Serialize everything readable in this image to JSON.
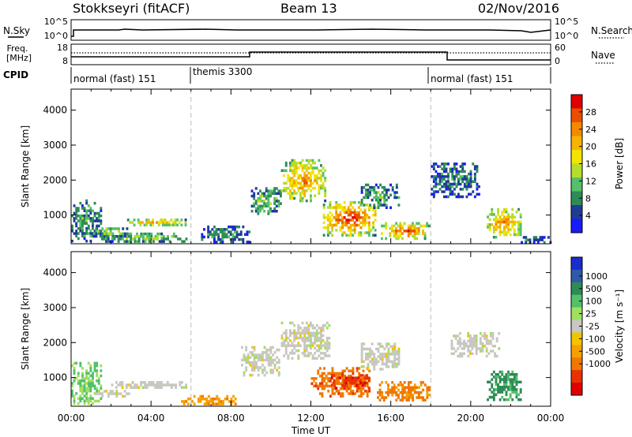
{
  "header": {
    "title": "Stokkseyri (fitACF)",
    "beam": "Beam 13",
    "date": "02/Nov/2016"
  },
  "meta_panels": {
    "nsky": {
      "label": "N.Sky",
      "ticks": [
        "10^5",
        "10^0"
      ]
    },
    "nsearch": {
      "label": "N.Search",
      "ticks": [
        "10^5",
        "10^0"
      ]
    },
    "freq": {
      "label_top": "Freq.",
      "label_unit": "[MHz]",
      "ticks": [
        "18",
        "8"
      ]
    },
    "nave": {
      "label": "Nave",
      "ticks": [
        "60",
        "0"
      ]
    },
    "cpid": {
      "label": "CPID",
      "segments": [
        {
          "start": 0,
          "end": 6,
          "text": "normal (fast) 151"
        },
        {
          "start": 6,
          "end": 18,
          "text": "themis 3300"
        },
        {
          "start": 18,
          "end": 24,
          "text": "normal (fast) 151"
        }
      ]
    }
  },
  "chart_data": [
    {
      "type": "heatmap",
      "name": "power",
      "xlabel": "",
      "ylabel": "Slant Range [km]",
      "xlim": [
        0,
        24
      ],
      "ylim": [
        180,
        4600
      ],
      "yticks": [
        "1000",
        "2000",
        "3000",
        "4000"
      ],
      "colorbar": {
        "label": "Power [dB]",
        "ticks": [
          "4",
          "8",
          "12",
          "16",
          "20",
          "24",
          "28"
        ],
        "colors": [
          "#1a1aff",
          "#1e3c96",
          "#2e8b57",
          "#55c06a",
          "#b5dd2c",
          "#f3e300",
          "#f6b400",
          "#f28a00",
          "#ea4f00",
          "#e00000"
        ]
      },
      "patches": [
        {
          "t0": 0.0,
          "t1": 1.5,
          "r0": 200,
          "r1": 1450,
          "value": 10
        },
        {
          "t0": 1.5,
          "t1": 5.8,
          "r0": 200,
          "r1": 500,
          "value": 12
        },
        {
          "t0": 2.8,
          "t1": 5.8,
          "r0": 650,
          "r1": 900,
          "value": 20
        },
        {
          "t0": 1.0,
          "t1": 2.8,
          "r0": 350,
          "r1": 650,
          "value": 14
        },
        {
          "t0": 6.5,
          "t1": 9.0,
          "r0": 200,
          "r1": 700,
          "value": 8
        },
        {
          "t0": 9.0,
          "t1": 10.5,
          "r0": 1000,
          "r1": 1800,
          "value": 12
        },
        {
          "t0": 10.5,
          "t1": 12.8,
          "r0": 1400,
          "r1": 2600,
          "value": 22
        },
        {
          "t0": 12.6,
          "t1": 15.3,
          "r0": 400,
          "r1": 1400,
          "value": 26
        },
        {
          "t0": 14.5,
          "t1": 16.5,
          "r0": 1200,
          "r1": 1900,
          "value": 10
        },
        {
          "t0": 15.5,
          "t1": 18.0,
          "r0": 300,
          "r1": 800,
          "value": 24
        },
        {
          "t0": 18.0,
          "t1": 20.5,
          "r0": 1500,
          "r1": 2500,
          "value": 8
        },
        {
          "t0": 20.8,
          "t1": 22.5,
          "r0": 300,
          "r1": 1200,
          "value": 22
        },
        {
          "t0": 22.5,
          "t1": 24.0,
          "r0": 200,
          "r1": 400,
          "value": 8
        }
      ]
    },
    {
      "type": "heatmap",
      "name": "velocity",
      "xlabel": "Time UT",
      "ylabel": "Slant Range [km]",
      "xlim": [
        0,
        24
      ],
      "ylim": [
        180,
        4600
      ],
      "xticks": [
        "00:00",
        "04:00",
        "08:00",
        "12:00",
        "16:00",
        "20:00",
        "00:00"
      ],
      "yticks": [
        "1000",
        "2000",
        "3000",
        "4000"
      ],
      "colorbar": {
        "label": "Velocity [m s⁻¹]",
        "ticks": [
          "1000",
          "500",
          "100",
          "25",
          "-25",
          "-100",
          "-500",
          "-1000"
        ],
        "colors": [
          "#1a2ccc",
          "#2e5aa8",
          "#2e8b57",
          "#55c06a",
          "#a0e060",
          "#c8c8c0",
          "#f3c400",
          "#f6a000",
          "#f07800",
          "#e83200",
          "#e00000"
        ]
      },
      "patches": [
        {
          "t0": 0.0,
          "t1": 1.5,
          "r0": 200,
          "r1": 1450,
          "value": 100
        },
        {
          "t0": 2.0,
          "t1": 5.8,
          "r0": 650,
          "r1": 900,
          "value": 0
        },
        {
          "t0": 1.2,
          "t1": 3.0,
          "r0": 400,
          "r1": 650,
          "value": 0
        },
        {
          "t0": 5.5,
          "t1": 8.5,
          "r0": 200,
          "r1": 500,
          "value": -200
        },
        {
          "t0": 8.5,
          "t1": 10.5,
          "r0": 1000,
          "r1": 1900,
          "value": 0
        },
        {
          "t0": 10.5,
          "t1": 13.0,
          "r0": 1500,
          "r1": 2600,
          "value": 0
        },
        {
          "t0": 12.0,
          "t1": 15.0,
          "r0": 400,
          "r1": 1300,
          "value": -400
        },
        {
          "t0": 13.0,
          "t1": 15.0,
          "r0": 700,
          "r1": 1100,
          "value": -800
        },
        {
          "t0": 14.5,
          "t1": 16.5,
          "r0": 1200,
          "r1": 2000,
          "value": 0
        },
        {
          "t0": 15.3,
          "t1": 18.0,
          "r0": 300,
          "r1": 900,
          "value": -300
        },
        {
          "t0": 20.8,
          "t1": 22.5,
          "r0": 300,
          "r1": 1200,
          "value": 300
        },
        {
          "t0": 19.0,
          "t1": 21.5,
          "r0": 1600,
          "r1": 2300,
          "value": 0
        }
      ]
    }
  ]
}
